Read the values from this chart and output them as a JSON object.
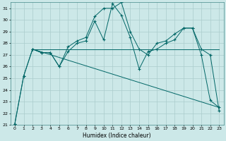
{
  "xlabel": "Humidex (Indice chaleur)",
  "bg_color": "#cce8e8",
  "grid_color": "#aacccc",
  "line_color": "#006666",
  "xlim": [
    -0.5,
    23.5
  ],
  "ylim": [
    21,
    31.5
  ],
  "yticks": [
    21,
    22,
    23,
    24,
    25,
    26,
    27,
    28,
    29,
    30,
    31
  ],
  "xticks": [
    0,
    1,
    2,
    3,
    4,
    5,
    6,
    7,
    8,
    9,
    10,
    11,
    12,
    13,
    14,
    15,
    16,
    17,
    18,
    19,
    20,
    21,
    22,
    23
  ],
  "series1_x": [
    0,
    1,
    2,
    3,
    4,
    5,
    6,
    7,
    8,
    9,
    10,
    11,
    12,
    13,
    14,
    15,
    16,
    17,
    18,
    19,
    20,
    21,
    22,
    23
  ],
  "series1_y": [
    21.1,
    25.2,
    27.5,
    27.2,
    27.2,
    26.0,
    27.3,
    28.0,
    28.2,
    29.9,
    28.3,
    31.4,
    30.4,
    28.5,
    25.8,
    27.3,
    27.5,
    28.0,
    28.3,
    29.3,
    29.3,
    27.5,
    27.0,
    22.2
  ],
  "series2_x": [
    0,
    1,
    2,
    3,
    4,
    5,
    6,
    7,
    8,
    9,
    10,
    11,
    12,
    13,
    14,
    15,
    16,
    17,
    18,
    19,
    20,
    21,
    22,
    23
  ],
  "series2_y": [
    21.1,
    25.2,
    27.5,
    27.2,
    27.2,
    26.0,
    27.7,
    28.2,
    28.5,
    30.3,
    31.0,
    31.0,
    31.5,
    29.0,
    27.5,
    27.0,
    28.0,
    28.2,
    28.8,
    29.3,
    29.3,
    27.0,
    23.1,
    22.5
  ],
  "trendline_x": [
    2,
    23
  ],
  "trendline_y": [
    27.5,
    27.5
  ],
  "trendline2_x": [
    2,
    23
  ],
  "trendline2_y": [
    27.5,
    22.5
  ]
}
